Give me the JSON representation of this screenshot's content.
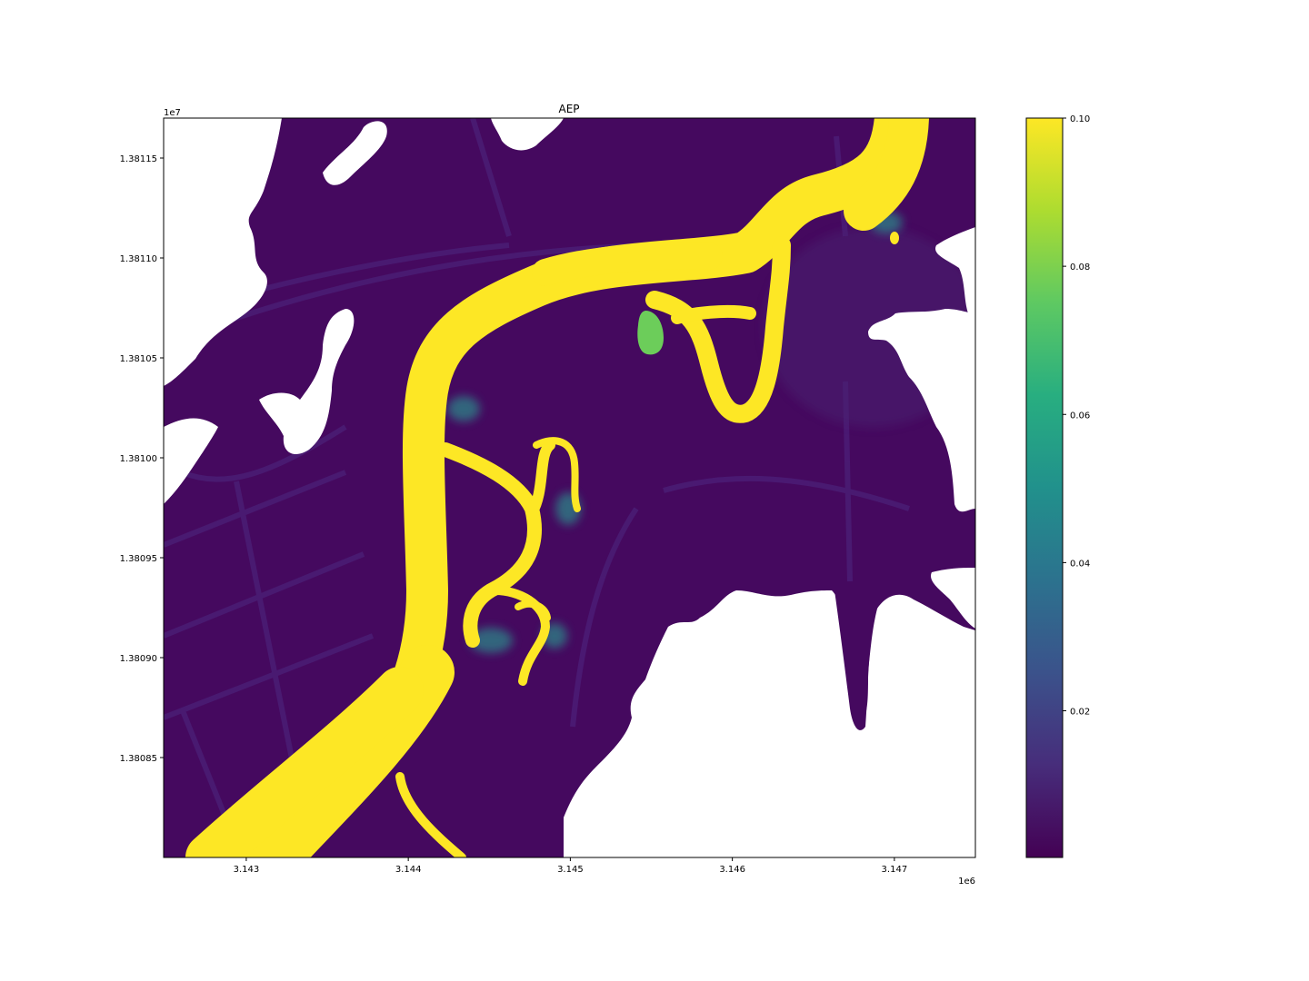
{
  "chart_data": {
    "type": "heatmap",
    "title": "AEP",
    "xlabel": "",
    "ylabel": "",
    "x_offset_label": "1e6",
    "y_offset_label": "1e7",
    "xlim": [
      3.14249,
      3.1475
    ],
    "ylim": [
      1.3808,
      1.38117
    ],
    "x_ticks": [
      3.143,
      3.144,
      3.145,
      3.146,
      3.147
    ],
    "x_tick_labels": [
      "3.143",
      "3.144",
      "3.145",
      "3.146",
      "3.147"
    ],
    "y_ticks": [
      1.38085,
      1.3809,
      1.38095,
      1.381,
      1.38105,
      1.3811,
      1.38115
    ],
    "y_tick_labels": [
      "1.38085",
      "1.38090",
      "1.38095",
      "1.38100",
      "1.38105",
      "1.38110",
      "1.38115"
    ],
    "grid": false,
    "colormap": "viridis",
    "colorbar": {
      "range": [
        0.0002,
        0.1
      ],
      "ticks": [
        0.02,
        0.04,
        0.06,
        0.08,
        0.1
      ],
      "tick_labels": [
        "0.02",
        "0.04",
        "0.06",
        "0.08",
        "0.10"
      ]
    },
    "regions": [
      {
        "name": "main-channel",
        "value": 0.1
      },
      {
        "name": "floodplain",
        "value": 0.003
      },
      {
        "name": "isolated-pond",
        "value": 0.078
      },
      {
        "name": "no-data",
        "value": null
      }
    ]
  },
  "colors": {
    "low": "#440154",
    "floodplain": "#45095f",
    "road": "#47176e",
    "high": "#fde725",
    "pond": "#6ccd5a",
    "edge": "#2a8c8a",
    "nodata": "#ffffff"
  }
}
